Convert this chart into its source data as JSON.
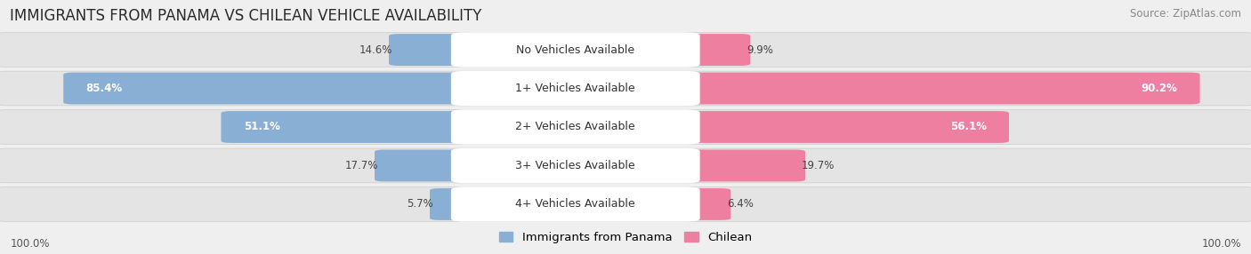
{
  "title": "IMMIGRANTS FROM PANAMA VS CHILEAN VEHICLE AVAILABILITY",
  "source": "Source: ZipAtlas.com",
  "categories": [
    "No Vehicles Available",
    "1+ Vehicles Available",
    "2+ Vehicles Available",
    "3+ Vehicles Available",
    "4+ Vehicles Available"
  ],
  "panama_values": [
    14.6,
    85.4,
    51.1,
    17.7,
    5.7
  ],
  "chilean_values": [
    9.9,
    90.2,
    56.1,
    19.7,
    6.4
  ],
  "panama_color": "#89afd4",
  "chilean_color": "#ee7fa0",
  "panama_color_light": "#aac5e0",
  "chilean_color_light": "#f4a8bc",
  "bg_color": "#efefef",
  "row_bg": "#e4e4e4",
  "row_bg_light": "#ebebeb",
  "label_100_left": "100.0%",
  "label_100_right": "100.0%",
  "title_fontsize": 12,
  "source_fontsize": 8.5,
  "value_fontsize": 8.5,
  "category_fontsize": 9,
  "legend_fontsize": 9.5
}
